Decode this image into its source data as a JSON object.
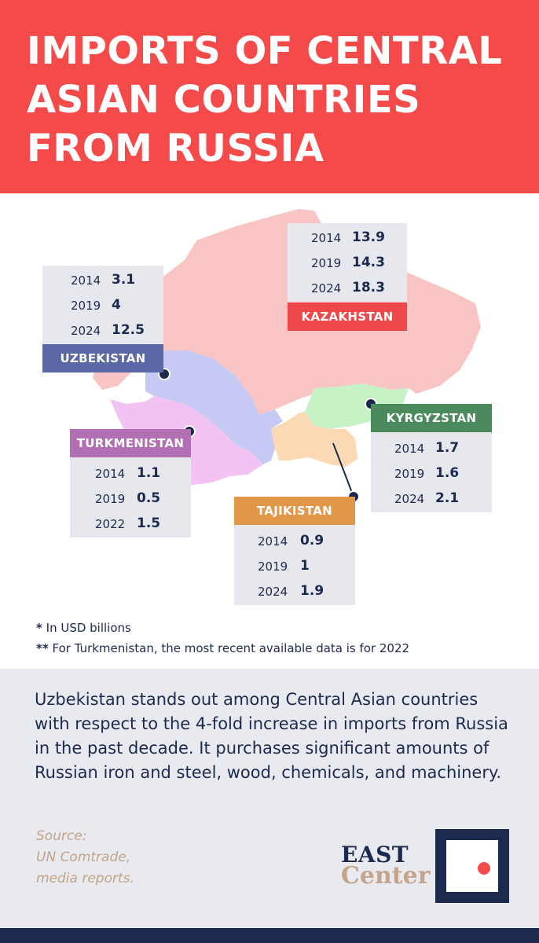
{
  "title": "IMPORTS OF CENTRAL ASIAN COUNTRIES FROM RUSSIA",
  "colors": {
    "header": "#f54a4a",
    "kazakhstan": "#f04848",
    "uzbekistan": "#5b68a6",
    "turkmenistan": "#b36fb4",
    "tajikistan": "#e0974a",
    "kyrgyzstan": "#4a8a5c",
    "navy": "#1b2a4e"
  },
  "chart_data": {
    "type": "table",
    "title": "IMPORTS OF CENTRAL ASIAN COUNTRIES FROM RUSSIA",
    "countries": [
      {
        "name": "KAZAKHSTAN",
        "rows": [
          {
            "year": "2014",
            "value": "13.9"
          },
          {
            "year": "2019",
            "value": "14.3"
          },
          {
            "year": "2024",
            "value": "18.3"
          }
        ]
      },
      {
        "name": "UZBEKISTAN",
        "rows": [
          {
            "year": "2014",
            "value": "3.1"
          },
          {
            "year": "2019",
            "value": "4"
          },
          {
            "year": "2024",
            "value": "12.5"
          }
        ]
      },
      {
        "name": "TURKMENISTAN",
        "rows": [
          {
            "year": "2014",
            "value": "1.1"
          },
          {
            "year": "2019",
            "value": "0.5"
          },
          {
            "year": "2022",
            "value": "1.5"
          }
        ]
      },
      {
        "name": "TAJIKISTAN",
        "rows": [
          {
            "year": "2014",
            "value": "0.9"
          },
          {
            "year": "2019",
            "value": "1"
          },
          {
            "year": "2024",
            "value": "1.9"
          }
        ]
      },
      {
        "name": "KYRGYZSTAN",
        "rows": [
          {
            "year": "2014",
            "value": "1.7"
          },
          {
            "year": "2019",
            "value": "1.6"
          },
          {
            "year": "2024",
            "value": "2.1"
          }
        ]
      }
    ]
  },
  "notes": {
    "note1_mark": "*",
    "note1_text": "In USD billions",
    "note2_mark": "**",
    "note2_text": "For Turkmenistan, the most recent available data is for 2022"
  },
  "summary": "Uzbekistan stands out among Central Asian countries with respect to the 4-fold increase in imports from Russia in the past decade. It purchases significant amounts of Russian iron and steel, wood, chemicals, and machinery.",
  "source": {
    "line1": "Source:",
    "line2": "UN Comtrade,",
    "line3": "media reports."
  },
  "logo": {
    "word1": "EAST",
    "word2": "Center"
  }
}
